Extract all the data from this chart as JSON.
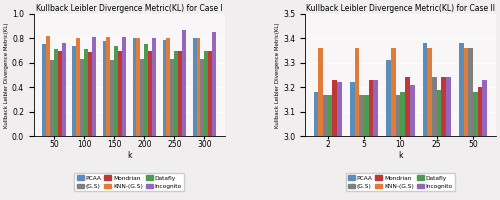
{
  "case1": {
    "title": "Kullback Leibler Divergence Metric(KL) for Case I",
    "xlabel": "k",
    "ylabel": "Kullback Leibler Divergence Metric(KL)",
    "x_labels": [
      "50",
      "100",
      "150",
      "200",
      "250",
      "300"
    ],
    "ylim": [
      0.0,
      1.0
    ],
    "yticks": [
      0.0,
      0.2,
      0.4,
      0.6,
      0.8,
      1.0
    ],
    "data": {
      "PCAA": [
        0.75,
        0.74,
        0.78,
        0.8,
        0.79,
        0.8
      ],
      "KNN-(G.S)": [
        0.82,
        0.8,
        0.81,
        0.8,
        0.8,
        0.8
      ],
      "(G.S)": [
        0.62,
        0.63,
        0.62,
        0.63,
        0.63,
        0.63
      ],
      "Datafly": [
        0.71,
        0.71,
        0.74,
        0.75,
        0.7,
        0.7
      ],
      "Mondrian": [
        0.7,
        0.69,
        0.7,
        0.7,
        0.7,
        0.7
      ],
      "Incognito": [
        0.76,
        0.81,
        0.81,
        0.8,
        0.87,
        0.85
      ]
    }
  },
  "case2": {
    "title": "Kullback Leibler Divergence Metric(KL) for Case II",
    "xlabel": "k",
    "ylabel": "Kullback Leibler Divergence Metric(KL)",
    "x_labels": [
      "2",
      "5",
      "10",
      "25",
      "50"
    ],
    "ylim": [
      3.0,
      3.5
    ],
    "yticks": [
      3.0,
      3.1,
      3.2,
      3.3,
      3.4,
      3.5
    ],
    "data": {
      "PCAA": [
        3.18,
        3.22,
        3.31,
        3.38,
        3.38
      ],
      "KNN-(G.S)": [
        3.36,
        3.36,
        3.36,
        3.36,
        3.36
      ],
      "(G.S)": [
        3.17,
        3.17,
        3.17,
        3.24,
        3.36
      ],
      "Datafly": [
        3.17,
        3.17,
        3.18,
        3.19,
        3.18
      ],
      "Mondrian": [
        3.23,
        3.23,
        3.24,
        3.24,
        3.2
      ],
      "Incognito": [
        3.22,
        3.23,
        3.21,
        3.24,
        3.23
      ]
    }
  },
  "colors": {
    "PCAA": "#5b8db8",
    "KNN-(G.S)": "#e07b39",
    "(G.S)": "#7f7f7f",
    "Datafly": "#4e9a51",
    "Mondrian": "#c0373a",
    "Incognito": "#9467bd"
  },
  "legend_order": [
    "PCAA",
    "(G.S)",
    "Mondrian",
    "KNN-(G.S)",
    "Datafly",
    "Incognito"
  ],
  "bg_color": "#f0eeee",
  "ax_bg_color": "#f8f6f6"
}
